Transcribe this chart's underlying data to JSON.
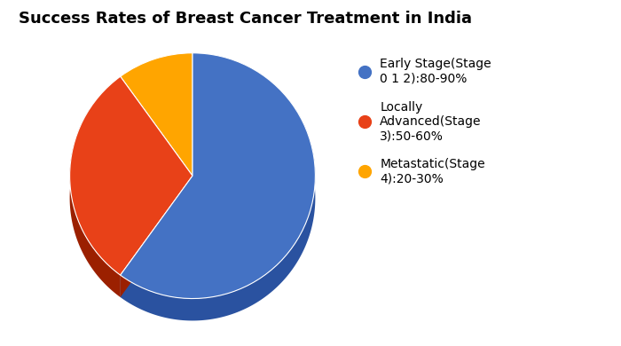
{
  "title": "Success Rates of Breast Cancer Treatment in India",
  "title_fontsize": 13,
  "title_fontweight": "bold",
  "slices": [
    60,
    30,
    10
  ],
  "colors": [
    "#4472C4",
    "#E84118",
    "#FFA500"
  ],
  "dark_colors": [
    "#2a52a0",
    "#9B2000",
    "#cc8000"
  ],
  "labels": [
    "Early Stage(Stage\n0 1 2):80-90%",
    "Locally\nAdvanced(Stage\n3):50-60%",
    "Metastatic(Stage\n4):20-30%"
  ],
  "startangle": 90,
  "background_color": "#ffffff",
  "depth": 0.18,
  "legend_marker_color": [
    "#4472C4",
    "#E84118",
    "#FFA500"
  ]
}
